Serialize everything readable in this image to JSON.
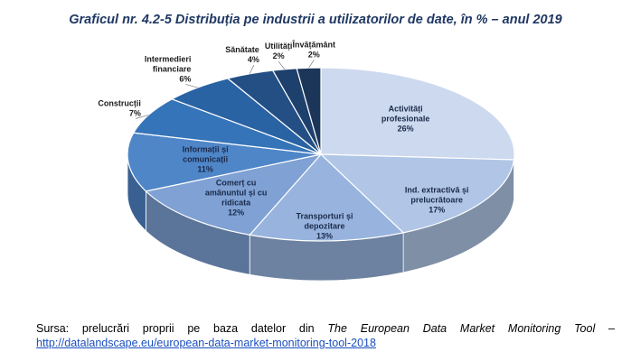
{
  "title": "Graficul nr. 4.2-5 Distribuția pe industrii a utilizatorilor de date, în % – anul 2019",
  "source": {
    "prefix": "Sursa: prelucrări proprii pe baza datelor din",
    "tool": "The European Data Market Monitoring Tool –",
    "link": "http://datalandscape.eu/european-data-market-monitoring-tool-2018"
  },
  "chart_data": {
    "type": "pie",
    "title": "Graficul nr. 4.2-5 Distribuția pe industrii a utilizatorilor de date, în % – anul 2019",
    "unit": "%",
    "slices": [
      {
        "label": [
          "Activități",
          "profesionale"
        ],
        "value": 26,
        "display": "26%",
        "color": "#cdd9ee"
      },
      {
        "label": [
          "Ind. extractivă și",
          "prelucrătoare"
        ],
        "value": 17,
        "display": "17%",
        "color": "#b1c6e6"
      },
      {
        "label": [
          "Transporturi și",
          "depozitare"
        ],
        "value": 13,
        "display": "13%",
        "color": "#98b4de"
      },
      {
        "label": [
          "Comerț cu",
          "amănuntul și cu",
          "ridicata"
        ],
        "value": 12,
        "display": "12%",
        "color": "#7fa1d4"
      },
      {
        "label": [
          "Informații și",
          "comunicații"
        ],
        "value": 11,
        "display": "11%",
        "color": "#4f86c8"
      },
      {
        "label": [
          "Construcții"
        ],
        "value": 7,
        "display": "7%",
        "color": "#3574b8"
      },
      {
        "label": [
          "Intermedieri",
          "financiare"
        ],
        "value": 6,
        "display": "6%",
        "color": "#2a63a4"
      },
      {
        "label": [
          "Sănătate"
        ],
        "value": 4,
        "display": "4%",
        "color": "#234f84"
      },
      {
        "label": [
          "Utilități"
        ],
        "value": 2,
        "display": "2%",
        "color": "#1d406c"
      },
      {
        "label": [
          "Învățământ"
        ],
        "value": 2,
        "display": "2%",
        "color": "#1b3659"
      }
    ]
  }
}
